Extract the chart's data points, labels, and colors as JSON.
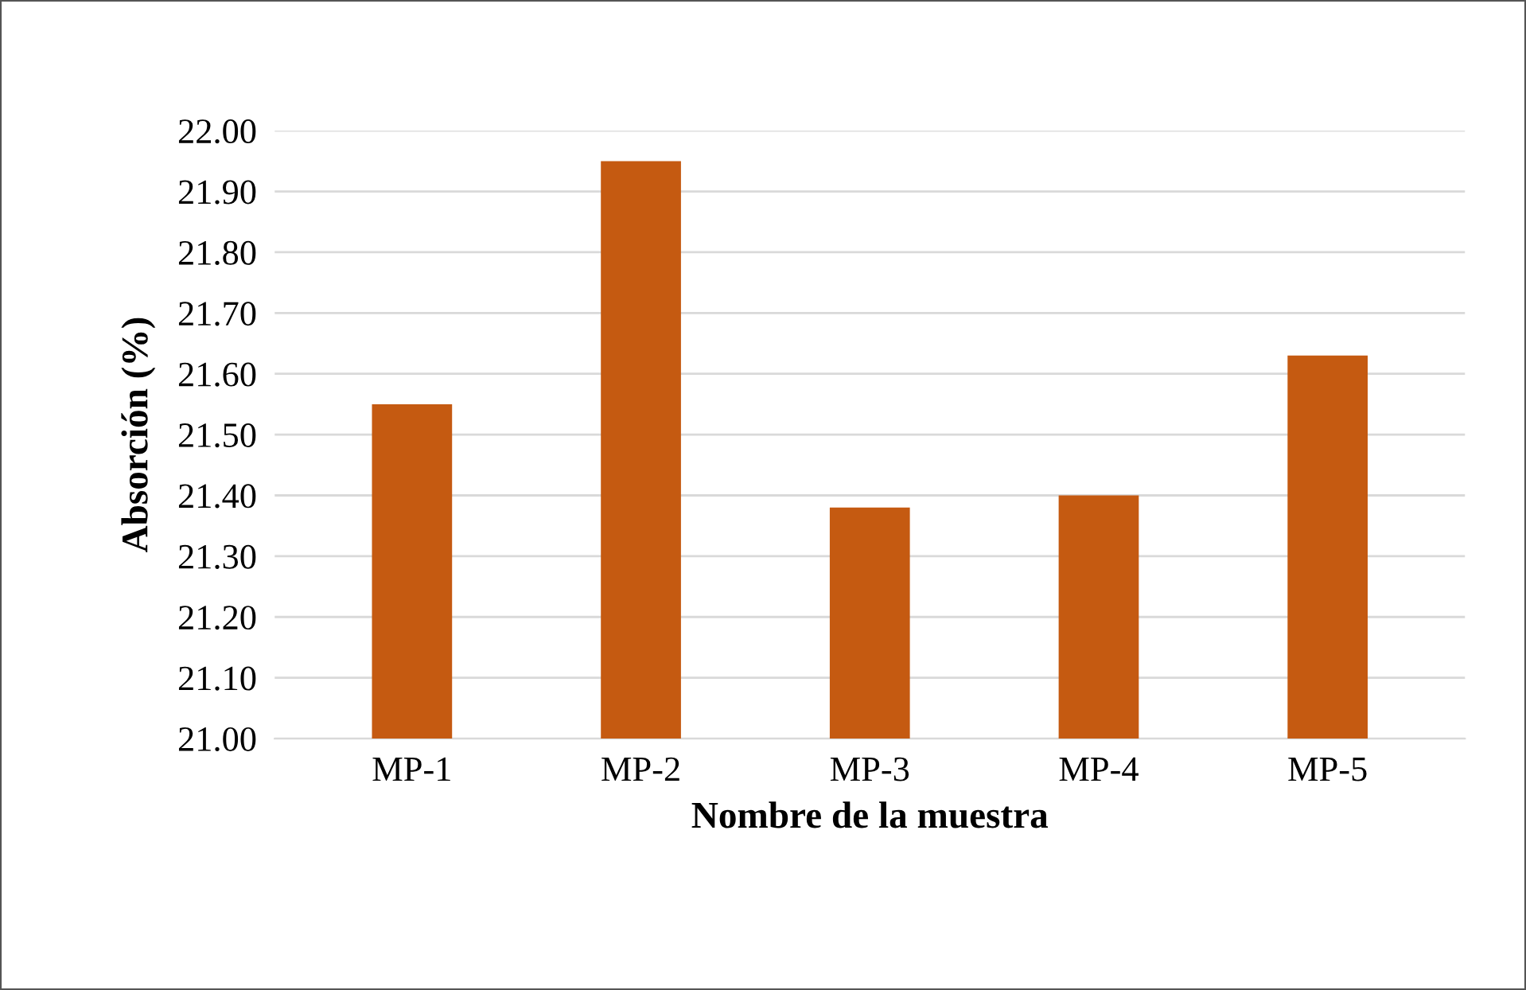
{
  "chart_data": {
    "type": "bar",
    "xlabel": "Nombre de la muestra",
    "ylabel": "Absorción (%)",
    "categories": [
      "MP-1",
      "MP-2",
      "MP-3",
      "MP-4",
      "MP-5"
    ],
    "values": [
      21.55,
      21.95,
      21.38,
      21.4,
      21.63
    ],
    "color": "#c55a11",
    "ylim": [
      21.0,
      22.0
    ],
    "yticks": [
      {
        "value": 21.0,
        "label": "21.00"
      },
      {
        "value": 21.1,
        "label": "21.10"
      },
      {
        "value": 21.2,
        "label": "21.20"
      },
      {
        "value": 21.3,
        "label": "21.30"
      },
      {
        "value": 21.4,
        "label": "21.40"
      },
      {
        "value": 21.5,
        "label": "21.50"
      },
      {
        "value": 21.6,
        "label": "21.60"
      },
      {
        "value": 21.7,
        "label": "21.70"
      },
      {
        "value": 21.8,
        "label": "21.80"
      },
      {
        "value": 21.9,
        "label": "21.90"
      },
      {
        "value": 22.0,
        "label": "22.00"
      }
    ],
    "grid": "y"
  }
}
